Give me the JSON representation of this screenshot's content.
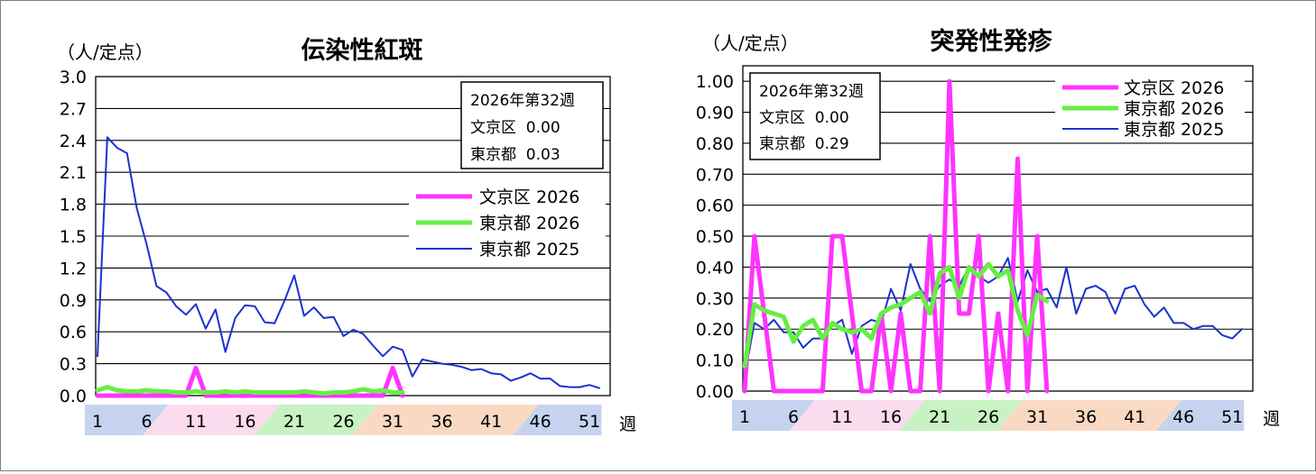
{
  "charts": [
    {
      "id": "left",
      "unit_label": "（人/定点）",
      "week_label": "週",
      "info_box": {
        "lines": [
          "2026年第32週",
          "文京区  0.00",
          "東京都  0.03"
        ]
      },
      "legend_order": [
        0,
        1,
        2
      ],
      "bands": [
        {
          "labels": [
            "1",
            "6"
          ],
          "color": "#c5d3ef"
        },
        {
          "labels": [
            "11",
            "16",
            "21"
          ],
          "color": "#fbdcee"
        },
        {
          "labels": [
            "26",
            "31"
          ],
          "color": "#c9f2c4"
        },
        {
          "labels": [
            "36",
            "41",
            "46"
          ],
          "color": "#fad9c3"
        },
        {
          "labels": [
            "51"
          ],
          "color": "#c5d3ef"
        }
      ]
    },
    {
      "id": "right",
      "unit_label": "（人/定点）",
      "week_label": "週",
      "info_box": {
        "lines": [
          "2026年第32週",
          "文京区  0.00",
          "東京都  0.29"
        ]
      },
      "legend_order": [
        0,
        1,
        2
      ],
      "bands": [
        {
          "labels": [
            "1",
            "6"
          ],
          "color": "#c5d3ef"
        },
        {
          "labels": [
            "11",
            "16",
            "21"
          ],
          "color": "#fbdcee"
        },
        {
          "labels": [
            "26",
            "31"
          ],
          "color": "#c9f2c4"
        },
        {
          "labels": [
            "36",
            "41",
            "46"
          ],
          "color": "#fad9c3"
        },
        {
          "labels": [
            "51"
          ],
          "color": "#c5d3ef"
        }
      ]
    }
  ],
  "chart_data": [
    {
      "type": "line",
      "title": "伝染性紅斑",
      "ylabel": "（人/定点）",
      "xlabel": "週",
      "ylim": [
        0,
        3.0
      ],
      "yticks": [
        "0.0",
        "0.3",
        "0.6",
        "0.9",
        "1.2",
        "1.5",
        "1.8",
        "2.1",
        "2.4",
        "2.7",
        "3.0"
      ],
      "xlim": [
        1,
        52
      ],
      "xticks": [
        1,
        6,
        11,
        16,
        21,
        26,
        31,
        36,
        41,
        46,
        51
      ],
      "grid": true,
      "legend_position": "right",
      "series": [
        {
          "name": "文京区 2026",
          "color": "#ff33ff",
          "width": 5,
          "x": [
            1,
            2,
            3,
            4,
            5,
            6,
            7,
            8,
            9,
            10,
            11,
            12,
            13,
            14,
            15,
            16,
            17,
            18,
            19,
            20,
            21,
            22,
            23,
            24,
            25,
            26,
            27,
            28,
            29,
            30,
            31,
            32
          ],
          "values": [
            0,
            0,
            0,
            0,
            0,
            0,
            0,
            0,
            0,
            0,
            0.26,
            0,
            0,
            0,
            0,
            0,
            0,
            0,
            0,
            0,
            0,
            0,
            0,
            0,
            0,
            0,
            0,
            0,
            0,
            0,
            0.26,
            0
          ]
        },
        {
          "name": "東京都 2026",
          "color": "#66ee44",
          "width": 5,
          "x": [
            1,
            2,
            3,
            4,
            5,
            6,
            7,
            8,
            9,
            10,
            11,
            12,
            13,
            14,
            15,
            16,
            17,
            18,
            19,
            20,
            21,
            22,
            23,
            24,
            25,
            26,
            27,
            28,
            29,
            30,
            31,
            32
          ],
          "values": [
            0.05,
            0.08,
            0.05,
            0.04,
            0.04,
            0.05,
            0.04,
            0.04,
            0.03,
            0.03,
            0.04,
            0.03,
            0.03,
            0.04,
            0.03,
            0.04,
            0.03,
            0.03,
            0.03,
            0.03,
            0.03,
            0.04,
            0.03,
            0.02,
            0.03,
            0.03,
            0.04,
            0.06,
            0.04,
            0.05,
            0.03,
            0.03
          ]
        },
        {
          "name": "東京都 2025",
          "color": "#1a33cc",
          "width": 2,
          "x": [
            1,
            2,
            3,
            4,
            5,
            6,
            7,
            8,
            9,
            10,
            11,
            12,
            13,
            14,
            15,
            16,
            17,
            18,
            19,
            20,
            21,
            22,
            23,
            24,
            25,
            26,
            27,
            28,
            29,
            30,
            31,
            32,
            33,
            34,
            35,
            36,
            37,
            38,
            39,
            40,
            41,
            42,
            43,
            44,
            45,
            46,
            47,
            48,
            49,
            50,
            51,
            52
          ],
          "values": [
            0.37,
            2.43,
            2.33,
            2.28,
            1.76,
            1.42,
            1.03,
            0.97,
            0.84,
            0.76,
            0.86,
            0.63,
            0.81,
            0.41,
            0.73,
            0.85,
            0.84,
            0.69,
            0.68,
            0.89,
            1.13,
            0.75,
            0.83,
            0.73,
            0.74,
            0.56,
            0.62,
            0.58,
            0.47,
            0.37,
            0.46,
            0.43,
            0.18,
            0.34,
            0.32,
            0.3,
            0.29,
            0.27,
            0.24,
            0.25,
            0.21,
            0.2,
            0.14,
            0.17,
            0.21,
            0.16,
            0.16,
            0.09,
            0.08,
            0.08,
            0.1,
            0.07
          ]
        }
      ]
    },
    {
      "type": "line",
      "title": "突発性発疹",
      "ylabel": "（人/定点）",
      "xlabel": "週",
      "ylim": [
        0,
        1.05
      ],
      "yticks": [
        "0.00",
        "0.10",
        "0.20",
        "0.30",
        "0.40",
        "0.50",
        "0.60",
        "0.70",
        "0.80",
        "0.90",
        "1.00"
      ],
      "xlim": [
        1,
        52
      ],
      "xticks": [
        1,
        6,
        11,
        16,
        21,
        26,
        31,
        36,
        41,
        46,
        51
      ],
      "grid": true,
      "legend_position": "top-right",
      "series": [
        {
          "name": "文京区 2026",
          "color": "#ff33ff",
          "width": 5,
          "x": [
            1,
            2,
            3,
            4,
            5,
            6,
            7,
            8,
            9,
            10,
            11,
            12,
            13,
            14,
            15,
            16,
            17,
            18,
            19,
            20,
            21,
            22,
            23,
            24,
            25,
            26,
            27,
            28,
            29,
            30,
            31,
            32
          ],
          "values": [
            0,
            0.5,
            0.25,
            0,
            0,
            0,
            0,
            0,
            0,
            0.5,
            0.5,
            0.25,
            0,
            0,
            0.25,
            0,
            0.25,
            0,
            0,
            0.5,
            0,
            1.0,
            0.25,
            0.25,
            0.5,
            0,
            0.25,
            0,
            0.75,
            0,
            0.5,
            0
          ]
        },
        {
          "name": "東京都 2026",
          "color": "#66ee44",
          "width": 5,
          "x": [
            1,
            2,
            3,
            4,
            5,
            6,
            7,
            8,
            9,
            10,
            11,
            12,
            13,
            14,
            15,
            16,
            17,
            18,
            19,
            20,
            21,
            22,
            23,
            24,
            25,
            26,
            27,
            28,
            29,
            30,
            31,
            32
          ],
          "values": [
            0.08,
            0.28,
            0.26,
            0.25,
            0.24,
            0.16,
            0.21,
            0.23,
            0.17,
            0.22,
            0.2,
            0.19,
            0.2,
            0.17,
            0.25,
            0.27,
            0.28,
            0.3,
            0.32,
            0.25,
            0.38,
            0.4,
            0.3,
            0.4,
            0.37,
            0.41,
            0.37,
            0.39,
            0.26,
            0.18,
            0.31,
            0.29
          ]
        },
        {
          "name": "東京都 2025",
          "color": "#1a33cc",
          "width": 2,
          "x": [
            1,
            2,
            3,
            4,
            5,
            6,
            7,
            8,
            9,
            10,
            11,
            12,
            13,
            14,
            15,
            16,
            17,
            18,
            19,
            20,
            21,
            22,
            23,
            24,
            25,
            26,
            27,
            28,
            29,
            30,
            31,
            32,
            33,
            34,
            35,
            36,
            37,
            38,
            39,
            40,
            41,
            42,
            43,
            44,
            45,
            46,
            47,
            48,
            49,
            50,
            51,
            52
          ],
          "values": [
            0.05,
            0.22,
            0.2,
            0.23,
            0.19,
            0.19,
            0.14,
            0.17,
            0.17,
            0.21,
            0.23,
            0.12,
            0.21,
            0.23,
            0.22,
            0.33,
            0.26,
            0.41,
            0.33,
            0.29,
            0.34,
            0.36,
            0.34,
            0.4,
            0.37,
            0.35,
            0.37,
            0.43,
            0.29,
            0.39,
            0.32,
            0.33,
            0.27,
            0.4,
            0.25,
            0.33,
            0.34,
            0.32,
            0.25,
            0.33,
            0.34,
            0.28,
            0.24,
            0.27,
            0.22,
            0.22,
            0.2,
            0.21,
            0.21,
            0.18,
            0.17,
            0.2
          ]
        }
      ]
    }
  ]
}
